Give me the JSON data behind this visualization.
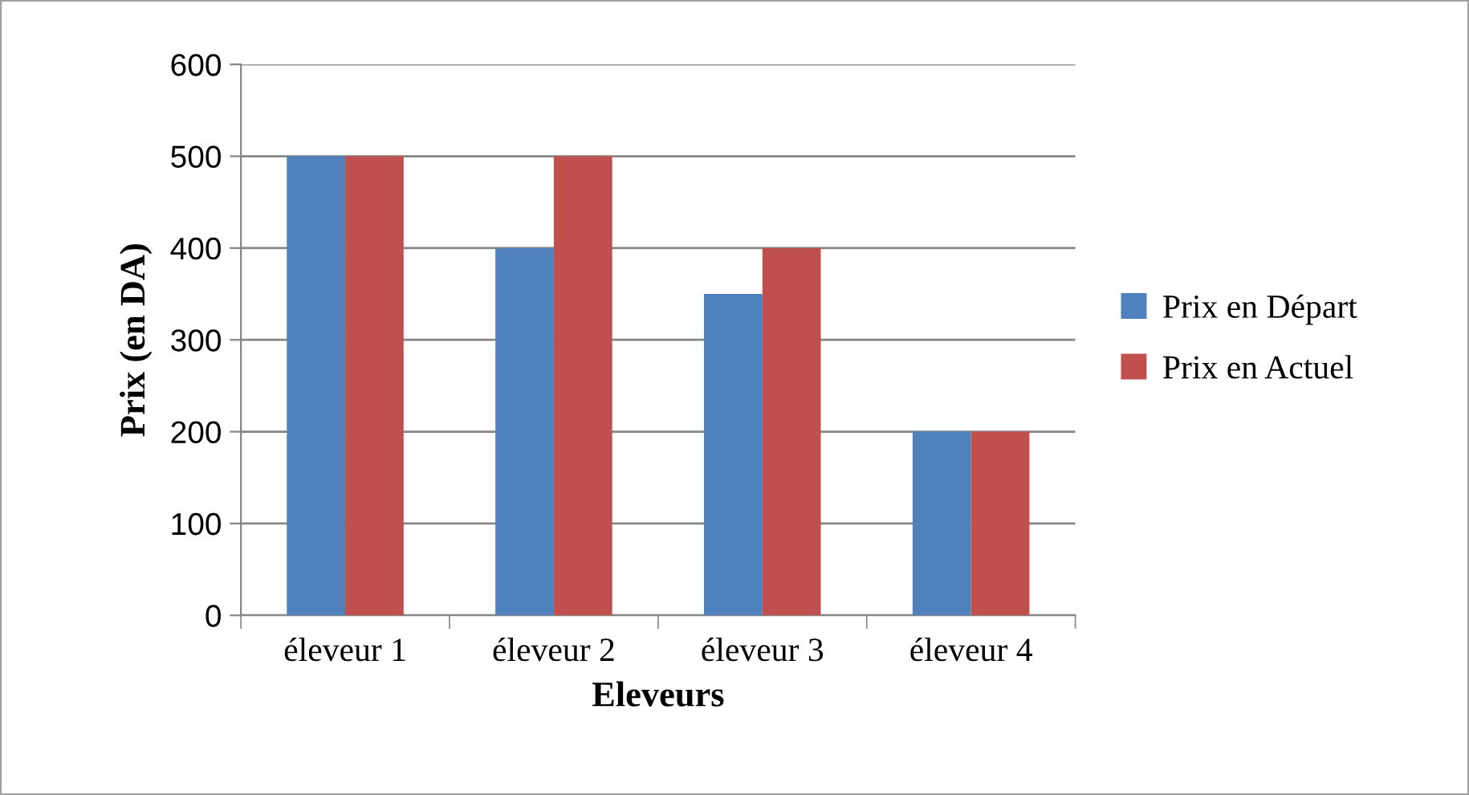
{
  "chart_data": {
    "type": "bar",
    "xlabel": "Eleveurs",
    "ylabel": "Prix (en DA)",
    "categories": [
      "éleveur 1",
      "éleveur 2",
      "éleveur 3",
      "éleveur 4"
    ],
    "series": [
      {
        "name": "Prix en Départ",
        "color": "#4f81bd",
        "values": [
          500,
          400,
          350,
          200
        ]
      },
      {
        "name": "Prix en Actuel",
        "color": "#c0504d",
        "values": [
          500,
          500,
          400,
          200
        ]
      }
    ],
    "ylim": [
      0,
      600
    ],
    "yticks": [
      0,
      100,
      200,
      300,
      400,
      500,
      600
    ],
    "grid": "y",
    "legend": "right"
  }
}
